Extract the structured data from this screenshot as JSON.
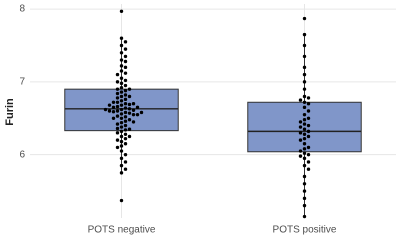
{
  "chart_data": {
    "type": "box",
    "y_label": "Furin",
    "categories": [
      "POTS negative",
      "POTS positive"
    ],
    "ylim": [
      5.13,
      8.07
    ],
    "yticks": [
      6,
      7,
      8
    ],
    "grid": true,
    "color": "#8096c9",
    "boxes": [
      {
        "q1": 6.33,
        "median": 6.63,
        "q3": 6.9,
        "whisker_low": 5.75,
        "whisker_high": 7.6
      },
      {
        "q1": 6.04,
        "median": 6.32,
        "q3": 6.72,
        "whisker_low": 5.15,
        "whisker_high": 7.65
      }
    ],
    "points": [
      [
        7.97,
        5.37,
        7.6,
        7.55,
        7.5,
        7.45,
        7.4,
        7.35,
        7.3,
        7.28,
        7.22,
        7.2,
        7.15,
        7.12,
        7.1,
        7.05,
        7.02,
        7.0,
        6.98,
        6.95,
        6.92,
        6.9,
        6.88,
        6.86,
        6.84,
        6.82,
        6.8,
        6.78,
        6.76,
        6.74,
        6.72,
        6.7,
        6.69,
        6.68,
        6.66,
        6.65,
        6.64,
        6.63,
        6.62,
        6.61,
        6.6,
        6.59,
        6.58,
        6.57,
        6.56,
        6.55,
        6.53,
        6.52,
        6.5,
        6.48,
        6.46,
        6.44,
        6.42,
        6.4,
        6.38,
        6.36,
        6.34,
        6.32,
        6.3,
        6.28,
        6.25,
        6.22,
        6.2,
        6.18,
        6.15,
        6.12,
        6.1,
        6.05,
        6.0,
        5.95,
        5.9,
        5.85,
        5.8,
        5.75,
        6.6,
        6.65,
        6.7,
        6.55,
        6.5,
        6.62,
        6.58,
        6.68,
        6.72,
        6.45,
        6.8,
        6.35,
        6.9,
        6.25
      ],
      [
        7.87,
        7.65,
        7.5,
        7.35,
        7.2,
        7.1,
        7.0,
        6.9,
        6.8,
        6.78,
        6.75,
        6.72,
        6.7,
        6.65,
        6.6,
        6.55,
        6.5,
        6.48,
        6.45,
        6.42,
        6.4,
        6.38,
        6.35,
        6.32,
        6.3,
        6.28,
        6.25,
        6.22,
        6.2,
        6.15,
        6.1,
        6.08,
        6.05,
        6.02,
        6.0,
        5.98,
        5.95,
        5.9,
        5.85,
        5.8,
        5.7,
        5.6,
        5.5,
        5.4,
        5.3,
        5.15
      ]
    ]
  }
}
